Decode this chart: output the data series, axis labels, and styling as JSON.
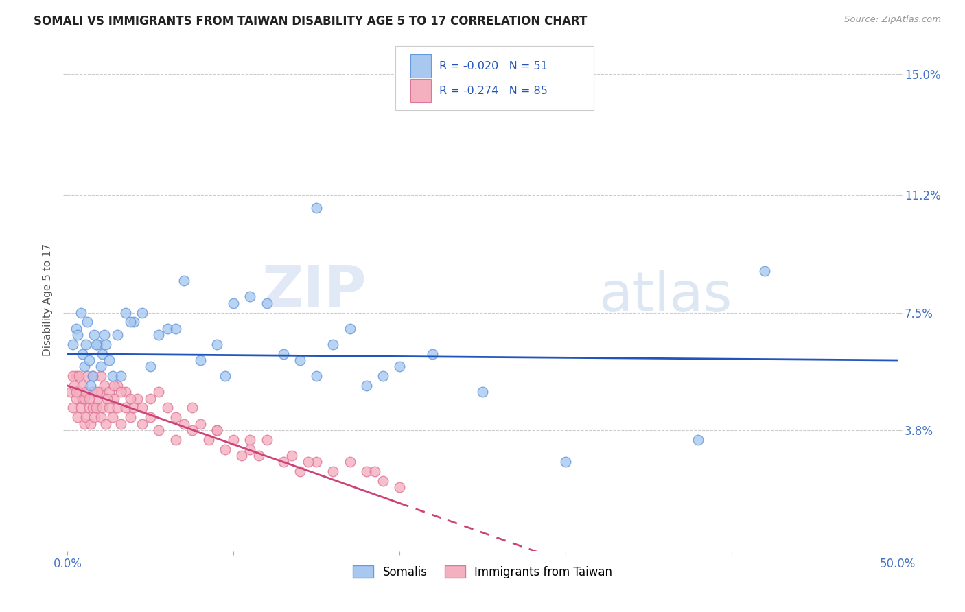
{
  "title": "SOMALI VS IMMIGRANTS FROM TAIWAN DISABILITY AGE 5 TO 17 CORRELATION CHART",
  "source": "Source: ZipAtlas.com",
  "ylabel": "Disability Age 5 to 17",
  "xlim": [
    0,
    50
  ],
  "ylim": [
    0,
    15.8
  ],
  "ytick_values": [
    3.8,
    7.5,
    11.2,
    15.0
  ],
  "ytick_labels": [
    "3.8%",
    "7.5%",
    "11.2%",
    "15.0%"
  ],
  "somali_color": "#A8C8F0",
  "taiwan_color": "#F5B0C0",
  "somali_edge": "#6699DD",
  "taiwan_edge": "#DD7799",
  "legend_somali_label": "Somalis",
  "legend_taiwan_label": "Immigrants from Taiwan",
  "R_somali": -0.02,
  "N_somali": 51,
  "R_taiwan": -0.274,
  "N_taiwan": 85,
  "somali_trend_start_y": 6.2,
  "somali_trend_end_y": 6.0,
  "taiwan_trend_start_y": 5.2,
  "taiwan_trend_end_y": 1.5,
  "taiwan_solid_end_x": 20.0,
  "somali_x": [
    0.3,
    0.5,
    0.6,
    0.8,
    0.9,
    1.0,
    1.1,
    1.2,
    1.3,
    1.5,
    1.6,
    1.8,
    2.0,
    2.1,
    2.3,
    2.5,
    2.7,
    3.0,
    3.2,
    3.5,
    4.0,
    4.5,
    5.0,
    5.5,
    6.0,
    7.0,
    8.0,
    9.0,
    10.0,
    11.0,
    12.0,
    13.0,
    14.0,
    15.0,
    16.0,
    17.0,
    18.0,
    19.0,
    20.0,
    22.0,
    25.0,
    30.0,
    38.0,
    42.0,
    1.4,
    1.7,
    2.2,
    3.8,
    6.5,
    9.5,
    15.0
  ],
  "somali_y": [
    6.5,
    7.0,
    6.8,
    7.5,
    6.2,
    5.8,
    6.5,
    7.2,
    6.0,
    5.5,
    6.8,
    6.5,
    5.8,
    6.2,
    6.5,
    6.0,
    5.5,
    6.8,
    5.5,
    7.5,
    7.2,
    7.5,
    5.8,
    6.8,
    7.0,
    8.5,
    6.0,
    6.5,
    7.8,
    8.0,
    7.8,
    6.2,
    6.0,
    5.5,
    6.5,
    7.0,
    5.2,
    5.5,
    5.8,
    6.2,
    5.0,
    2.8,
    3.5,
    8.8,
    5.2,
    6.5,
    6.8,
    7.2,
    7.0,
    5.5,
    10.8
  ],
  "taiwan_x": [
    0.2,
    0.3,
    0.4,
    0.5,
    0.5,
    0.6,
    0.7,
    0.8,
    0.9,
    1.0,
    1.0,
    1.1,
    1.2,
    1.3,
    1.4,
    1.5,
    1.5,
    1.6,
    1.7,
    1.8,
    2.0,
    2.0,
    2.1,
    2.2,
    2.3,
    2.5,
    2.5,
    2.7,
    2.8,
    3.0,
    3.0,
    3.2,
    3.5,
    3.5,
    3.8,
    4.0,
    4.2,
    4.5,
    5.0,
    5.0,
    5.5,
    6.0,
    6.5,
    7.0,
    7.5,
    8.0,
    8.5,
    9.0,
    9.5,
    10.0,
    10.5,
    11.0,
    11.5,
    12.0,
    13.0,
    13.5,
    14.0,
    15.0,
    16.0,
    17.0,
    18.0,
    19.0,
    20.0,
    0.3,
    0.5,
    0.7,
    0.9,
    1.1,
    1.3,
    1.5,
    1.8,
    2.0,
    2.4,
    2.8,
    3.2,
    3.8,
    4.5,
    5.5,
    6.5,
    7.5,
    9.0,
    11.0,
    14.5,
    18.5
  ],
  "taiwan_y": [
    5.0,
    4.5,
    5.2,
    4.8,
    5.5,
    4.2,
    5.0,
    4.5,
    4.8,
    4.0,
    4.8,
    4.2,
    5.5,
    4.5,
    4.0,
    4.5,
    5.0,
    4.2,
    4.5,
    4.8,
    4.2,
    5.0,
    4.5,
    5.2,
    4.0,
    4.5,
    5.0,
    4.2,
    4.8,
    4.5,
    5.2,
    4.0,
    4.5,
    5.0,
    4.2,
    4.5,
    4.8,
    4.0,
    4.2,
    4.8,
    3.8,
    4.5,
    3.5,
    4.0,
    3.8,
    4.0,
    3.5,
    3.8,
    3.2,
    3.5,
    3.0,
    3.5,
    3.0,
    3.5,
    2.8,
    3.0,
    2.5,
    2.8,
    2.5,
    2.8,
    2.5,
    2.2,
    2.0,
    5.5,
    5.0,
    5.5,
    5.2,
    5.0,
    4.8,
    5.5,
    5.0,
    5.5,
    4.8,
    5.2,
    5.0,
    4.8,
    4.5,
    5.0,
    4.2,
    4.5,
    3.8,
    3.2,
    2.8,
    2.5
  ]
}
